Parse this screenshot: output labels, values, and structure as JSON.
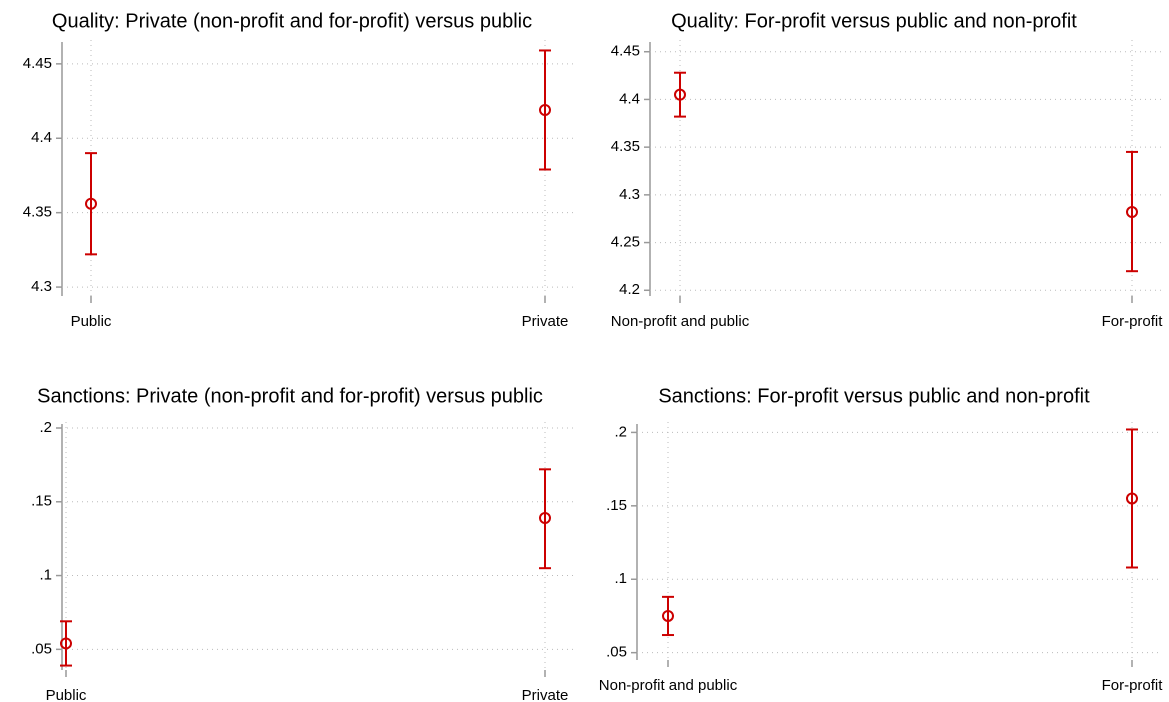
{
  "chart_data": [
    {
      "type": "pointrange",
      "title": "Quality: Private (non-profit and for-profit) versus public",
      "categories": [
        "Public",
        "Private"
      ],
      "values": [
        4.356,
        4.419
      ],
      "lower": [
        4.322,
        4.379
      ],
      "upper": [
        4.39,
        4.459
      ],
      "color": "#cc0000",
      "ylim": [
        4.294,
        4.462
      ],
      "yticks": [
        4.3,
        4.35,
        4.4,
        4.45
      ],
      "grid": true
    },
    {
      "type": "pointrange",
      "title": "Quality: For-profit versus public and non-profit",
      "categories": [
        "Non-profit and public",
        "For-profit"
      ],
      "values": [
        4.405,
        4.282
      ],
      "lower": [
        4.382,
        4.22
      ],
      "upper": [
        4.428,
        4.345
      ],
      "color": "#cc0000",
      "ylim": [
        4.194,
        4.456
      ],
      "yticks": [
        4.2,
        4.25,
        4.3,
        4.35,
        4.4,
        4.45
      ],
      "grid": true
    },
    {
      "type": "pointrange",
      "title": "Sanctions: Private (non-profit and for-profit) versus public",
      "categories": [
        "Public",
        "Private"
      ],
      "values": [
        0.054,
        0.139
      ],
      "lower": [
        0.039,
        0.105
      ],
      "upper": [
        0.069,
        0.172
      ],
      "color": "#cc0000",
      "ylim": [
        0.036,
        0.2
      ],
      "yticks": [
        {
          "value": 0.05,
          "label": ".05"
        },
        {
          "value": 0.1,
          "label": ".1"
        },
        {
          "value": 0.15,
          "label": ".15"
        },
        {
          "value": 0.2,
          "label": ".2"
        }
      ],
      "grid": true
    },
    {
      "type": "pointrange",
      "title": "Sanctions: For-profit versus public and non-profit",
      "categories": [
        "Non-profit and public",
        "For-profit"
      ],
      "values": [
        0.075,
        0.155
      ],
      "lower": [
        0.062,
        0.108
      ],
      "upper": [
        0.088,
        0.202
      ],
      "color": "#cc0000",
      "ylim": [
        0.045,
        0.203
      ],
      "yticks": [
        {
          "value": 0.05,
          "label": ".05"
        },
        {
          "value": 0.1,
          "label": ".1"
        },
        {
          "value": 0.15,
          "label": ".15"
        },
        {
          "value": 0.2,
          "label": ".2"
        }
      ],
      "grid": true
    }
  ]
}
